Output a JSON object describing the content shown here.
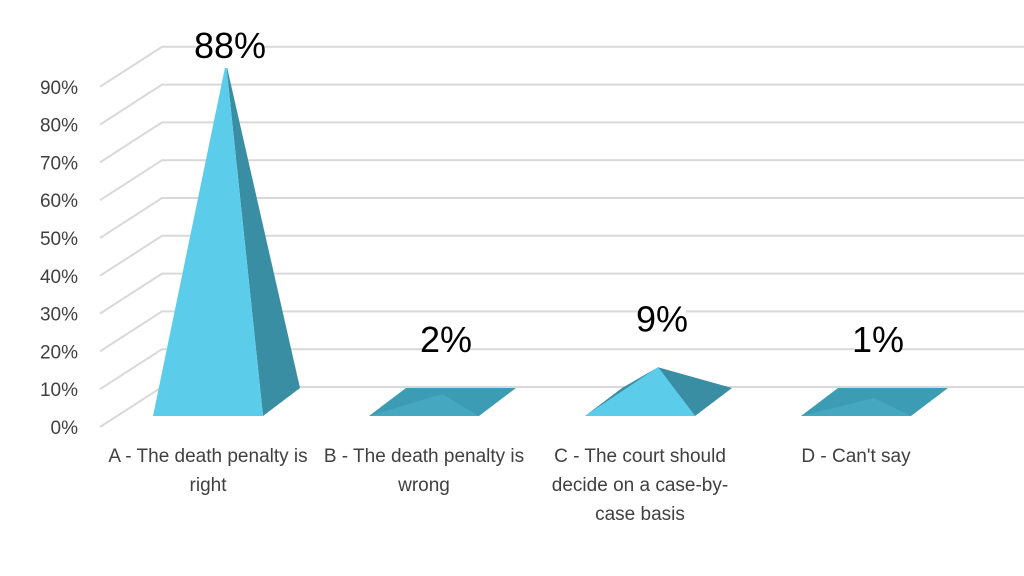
{
  "colors": {
    "front": "#5BCDEA",
    "side": "#3A8EA3",
    "top_flat": "#3C9CB4",
    "grid": "#D9D9D9",
    "tick_text": "#404040",
    "label_bg": "#FFFFFF"
  },
  "chart_data": {
    "type": "bar",
    "style": "3d-pyramid",
    "categories": [
      "A - The death penalty is right",
      "B - The death penalty is wrong",
      "C - The court should decide on a case-by-case basis",
      "D - Can't say"
    ],
    "values": [
      88,
      2,
      9,
      1
    ],
    "data_labels": [
      "88%",
      "2%",
      "9%",
      "1%"
    ],
    "y_ticks": [
      "0%",
      "10%",
      "20%",
      "30%",
      "40%",
      "50%",
      "60%",
      "70%",
      "80%",
      "90%"
    ],
    "ylim": [
      0,
      90
    ],
    "grid": true,
    "legend": "none",
    "title": "",
    "xlabel": "",
    "ylabel": ""
  }
}
